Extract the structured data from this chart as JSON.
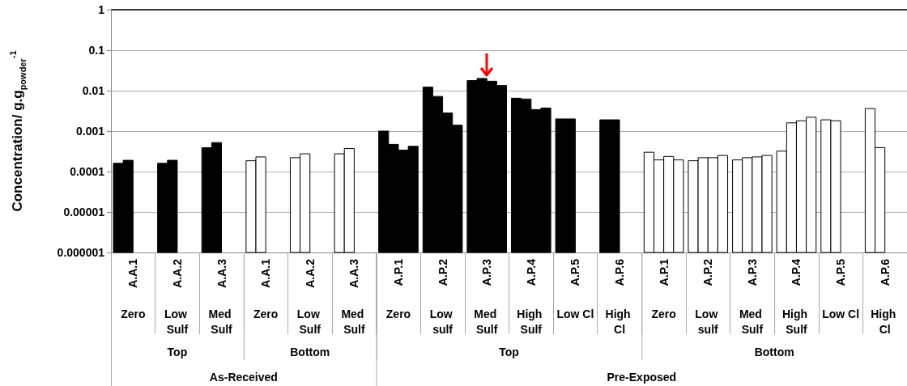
{
  "chart_data": {
    "type": "bar",
    "ylabel": "Concentration/ g.g$_{powder}$$^{-1}$",
    "categories": [
      "A.A.1",
      "A.A.2",
      "A.A.3",
      "A.A.1",
      "A.A.2",
      "A.A.3",
      "A.P.1",
      "A.P.2",
      "A.P.3",
      "A.P.4",
      "A.P.5",
      "A.P.6",
      "A.P.1",
      "A.P.2",
      "A.P.3",
      "A.P.4",
      "A.P.5",
      "A.P.6"
    ],
    "series": [
      {
        "colors": [
          "#000000",
          "#000000",
          "#000000",
          "#ffffff",
          "#ffffff",
          "#ffffff",
          "#000000",
          "#000000",
          "#000000",
          "#000000",
          "#000000",
          "#000000",
          "#ffffff",
          "#ffffff",
          "#ffffff",
          "#ffffff",
          "#ffffff",
          "#ffffff"
        ],
        "values": [
          0.00016,
          0.00016,
          0.00039,
          0.000185,
          0.00022,
          0.000275,
          0.001,
          0.0122,
          0.0177,
          0.0065,
          0.002,
          0.0019,
          0.0003,
          0.000185,
          0.000194,
          0.00032,
          0.0019,
          0.0036
        ]
      },
      {
        "colors": [
          "#000000",
          "#000000",
          "#000000",
          "#ffffff",
          "#ffffff",
          "#ffffff",
          "#000000",
          "#000000",
          "#000000",
          "#000000",
          "#000000",
          "#000000",
          "#ffffff",
          "#ffffff",
          "#ffffff",
          "#ffffff",
          "#ffffff",
          "#ffffff"
        ],
        "values": [
          0.00019,
          0.00019,
          0.00052,
          0.00023,
          0.000275,
          0.00037,
          0.00047,
          0.0072,
          0.02,
          0.0062,
          0.002,
          0.0019,
          0.000194,
          0.00022,
          0.00022,
          0.0016,
          0.0018,
          0.00039
        ]
      },
      {
        "colors": [
          null,
          null,
          null,
          null,
          null,
          null,
          "#000000",
          "#000000",
          "#000000",
          "#000000",
          null,
          null,
          "#ffffff",
          "#ffffff",
          "#ffffff",
          "#ffffff",
          null,
          null
        ],
        "values": [
          null,
          null,
          null,
          null,
          null,
          null,
          0.00034,
          0.0028,
          0.0171,
          0.0034,
          null,
          null,
          0.000236,
          0.00022,
          0.00023,
          0.0018,
          null,
          null
        ]
      },
      {
        "colors": [
          null,
          null,
          null,
          null,
          null,
          null,
          "#000000",
          "#000000",
          "#000000",
          "#000000",
          null,
          null,
          "#ffffff",
          "#ffffff",
          "#ffffff",
          "#ffffff",
          null,
          null
        ],
        "values": [
          null,
          null,
          null,
          null,
          null,
          null,
          0.00042,
          0.0014,
          0.0134,
          0.0037,
          null,
          null,
          0.000194,
          0.00025,
          0.00025,
          0.0022,
          null,
          null
        ]
      }
    ],
    "log": "y",
    "ylim": [
      1e-06,
      1
    ],
    "yticks": [
      {
        "value": 1e-06,
        "label": "0.000001"
      },
      {
        "value": 1e-05,
        "label": "0.00001"
      },
      0.0001,
      0.001,
      0.01,
      0.1,
      1
    ],
    "grid": "y",
    "annotations": [
      "Zero",
      "Low Sulf",
      "Med Sulf",
      "Zero",
      "Low Sulf",
      "Med Sulf",
      "Zero",
      "Low sulf",
      "Med Sulf",
      "High Sulf",
      "Low Cl",
      "High Cl",
      "Zero",
      "Low sulf",
      "Med Sulf",
      "High Sulf",
      "Low Cl",
      "High Cl",
      "Top",
      "Bottom",
      "Top",
      "Bottom",
      "As-Received",
      "Pre-Exposed"
    ]
  }
}
